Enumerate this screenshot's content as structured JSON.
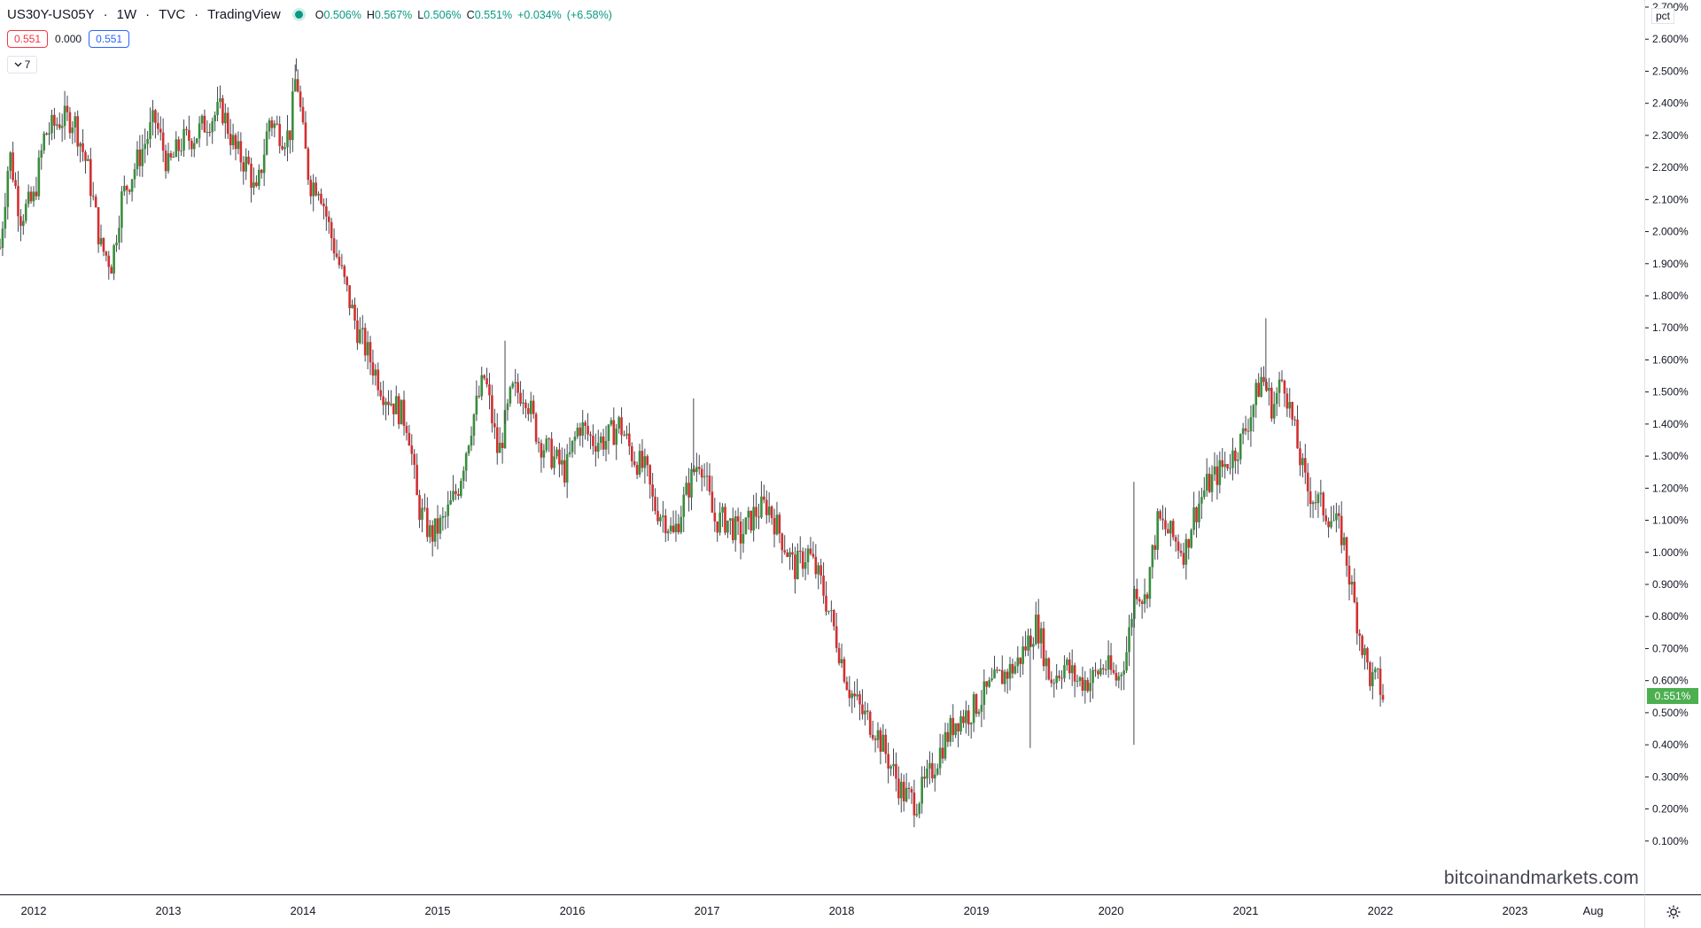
{
  "header": {
    "symbol": "US30Y-US05Y",
    "interval": "1W",
    "exchange": "TVC",
    "source": "TradingView",
    "status_color": "#089981",
    "ohlc": {
      "open_label": "O",
      "open": "0.506%",
      "high_label": "H",
      "high": "0.567%",
      "low_label": "L",
      "low": "0.506%",
      "close_label": "C",
      "close": "0.551%",
      "change": "+0.034%",
      "change_pct": "(+6.58%)"
    }
  },
  "value_boxes": {
    "sell": "0.551",
    "spread": "0.000",
    "buy": "0.551"
  },
  "indicator_toggle": {
    "icon": "chevron-down-icon",
    "count": "7"
  },
  "axis": {
    "unit": "pct",
    "current_price": "0.551%",
    "settings_icon": "gear-icon"
  },
  "watermark": "bitcoinandmarkets.com",
  "colors": {
    "up": "#4caf50",
    "down": "#f23645",
    "up_candle": "#388e3c",
    "down_candle": "#d32f2f",
    "wick": "#434651"
  },
  "chart_data": {
    "type": "candlestick",
    "interval": "1W",
    "ylim": [
      0.0,
      2.7
    ],
    "grid": false,
    "y_ticks": [
      "2.700%",
      "2.600%",
      "2.500%",
      "2.400%",
      "2.300%",
      "2.200%",
      "2.100%",
      "2.000%",
      "1.900%",
      "1.800%",
      "1.700%",
      "1.600%",
      "1.500%",
      "1.400%",
      "1.300%",
      "1.200%",
      "1.100%",
      "1.000%",
      "0.900%",
      "0.800%",
      "0.700%",
      "0.600%",
      "0.500%",
      "0.400%",
      "0.300%",
      "0.200%",
      "0.100%"
    ],
    "x_ticks": [
      {
        "label": "2012",
        "t": 2012.0
      },
      {
        "label": "2013",
        "t": 2013.0
      },
      {
        "label": "2014",
        "t": 2014.0
      },
      {
        "label": "2015",
        "t": 2015.0
      },
      {
        "label": "2016",
        "t": 2016.0
      },
      {
        "label": "2017",
        "t": 2017.0
      },
      {
        "label": "2018",
        "t": 2018.0
      },
      {
        "label": "2019",
        "t": 2019.0
      },
      {
        "label": "2020",
        "t": 2020.0
      },
      {
        "label": "2021",
        "t": 2021.0
      },
      {
        "label": "2022",
        "t": 2022.0
      },
      {
        "label": "2023",
        "t": 2023.0
      },
      {
        "label": "Aug",
        "t": 2023.58
      }
    ],
    "x_range": [
      2011.75,
      2023.96
    ],
    "path": [
      [
        2011.75,
        1.95
      ],
      [
        2011.82,
        2.25
      ],
      [
        2011.9,
        2.05
      ],
      [
        2012.0,
        2.1
      ],
      [
        2012.08,
        2.3
      ],
      [
        2012.2,
        2.35
      ],
      [
        2012.3,
        2.35
      ],
      [
        2012.4,
        2.2
      ],
      [
        2012.5,
        1.95
      ],
      [
        2012.58,
        1.9
      ],
      [
        2012.65,
        2.1
      ],
      [
        2012.8,
        2.25
      ],
      [
        2012.9,
        2.35
      ],
      [
        2013.0,
        2.2
      ],
      [
        2013.1,
        2.28
      ],
      [
        2013.2,
        2.3
      ],
      [
        2013.3,
        2.35
      ],
      [
        2013.4,
        2.38
      ],
      [
        2013.5,
        2.25
      ],
      [
        2013.6,
        2.2
      ],
      [
        2013.65,
        2.1
      ],
      [
        2013.75,
        2.35
      ],
      [
        2013.85,
        2.3
      ],
      [
        2013.9,
        2.3
      ],
      [
        2013.95,
        2.5
      ],
      [
        2014.0,
        2.3
      ],
      [
        2014.05,
        2.15
      ],
      [
        2014.12,
        2.15
      ],
      [
        2014.2,
        2.0
      ],
      [
        2014.3,
        1.85
      ],
      [
        2014.4,
        1.7
      ],
      [
        2014.5,
        1.6
      ],
      [
        2014.6,
        1.5
      ],
      [
        2014.7,
        1.45
      ],
      [
        2014.78,
        1.4
      ],
      [
        2014.85,
        1.15
      ],
      [
        2014.95,
        1.05
      ],
      [
        2015.05,
        1.1
      ],
      [
        2015.15,
        1.2
      ],
      [
        2015.25,
        1.4
      ],
      [
        2015.35,
        1.55
      ],
      [
        2015.45,
        1.3
      ],
      [
        2015.55,
        1.5
      ],
      [
        2015.65,
        1.5
      ],
      [
        2015.75,
        1.35
      ],
      [
        2015.85,
        1.3
      ],
      [
        2015.95,
        1.25
      ],
      [
        2016.05,
        1.4
      ],
      [
        2016.15,
        1.35
      ],
      [
        2016.25,
        1.35
      ],
      [
        2016.35,
        1.4
      ],
      [
        2016.45,
        1.3
      ],
      [
        2016.55,
        1.25
      ],
      [
        2016.6,
        1.15
      ],
      [
        2016.7,
        1.1
      ],
      [
        2016.75,
        1.05
      ],
      [
        2016.82,
        1.15
      ],
      [
        2016.9,
        1.25
      ],
      [
        2016.95,
        1.3
      ],
      [
        2017.05,
        1.1
      ],
      [
        2017.15,
        1.1
      ],
      [
        2017.25,
        1.05
      ],
      [
        2017.35,
        1.12
      ],
      [
        2017.45,
        1.15
      ],
      [
        2017.55,
        1.05
      ],
      [
        2017.65,
        0.95
      ],
      [
        2017.75,
        1.0
      ],
      [
        2017.85,
        0.9
      ],
      [
        2017.95,
        0.75
      ],
      [
        2018.05,
        0.58
      ],
      [
        2018.15,
        0.5
      ],
      [
        2018.25,
        0.45
      ],
      [
        2018.35,
        0.35
      ],
      [
        2018.45,
        0.25
      ],
      [
        2018.55,
        0.22
      ],
      [
        2018.65,
        0.3
      ],
      [
        2018.75,
        0.4
      ],
      [
        2018.85,
        0.48
      ],
      [
        2018.95,
        0.5
      ],
      [
        2019.05,
        0.55
      ],
      [
        2019.15,
        0.6
      ],
      [
        2019.3,
        0.65
      ],
      [
        2019.45,
        0.78
      ],
      [
        2019.55,
        0.6
      ],
      [
        2019.65,
        0.65
      ],
      [
        2019.75,
        0.6
      ],
      [
        2019.85,
        0.6
      ],
      [
        2019.95,
        0.65
      ],
      [
        2020.05,
        0.6
      ],
      [
        2020.12,
        0.7
      ],
      [
        2020.18,
        0.9
      ],
      [
        2020.25,
        0.85
      ],
      [
        2020.35,
        1.1
      ],
      [
        2020.45,
        1.05
      ],
      [
        2020.55,
        1.0
      ],
      [
        2020.6,
        1.1
      ],
      [
        2020.7,
        1.2
      ],
      [
        2020.8,
        1.25
      ],
      [
        2020.9,
        1.3
      ],
      [
        2020.97,
        1.35
      ],
      [
        2021.05,
        1.45
      ],
      [
        2021.12,
        1.55
      ],
      [
        2021.2,
        1.45
      ],
      [
        2021.28,
        1.55
      ],
      [
        2021.35,
        1.4
      ],
      [
        2021.45,
        1.2
      ],
      [
        2021.55,
        1.15
      ],
      [
        2021.65,
        1.1
      ],
      [
        2021.72,
        1.05
      ],
      [
        2021.8,
        0.85
      ],
      [
        2021.87,
        0.7
      ],
      [
        2021.93,
        0.6
      ],
      [
        2021.98,
        0.6
      ],
      [
        2022.02,
        0.55
      ]
    ],
    "spikes": [
      {
        "t": 2013.95,
        "high": 2.54
      },
      {
        "t": 2015.5,
        "high": 1.66
      },
      {
        "t": 2016.9,
        "high": 1.48
      },
      {
        "t": 2019.4,
        "low": 0.39
      },
      {
        "t": 2020.17,
        "low": 0.4,
        "high": 1.22
      },
      {
        "t": 2021.15,
        "high": 1.73
      }
    ]
  }
}
